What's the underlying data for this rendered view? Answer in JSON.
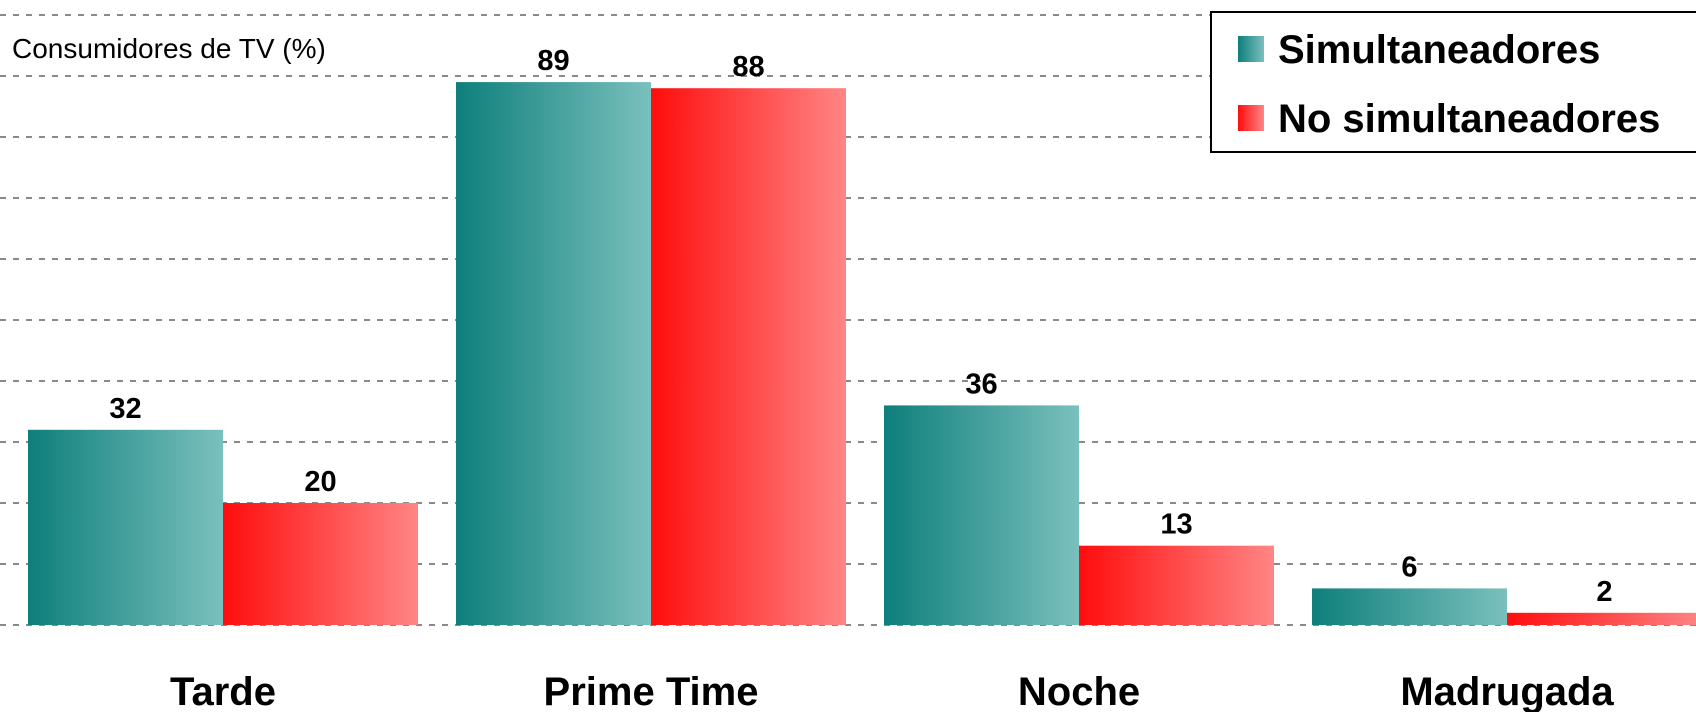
{
  "chart_data": {
    "type": "bar",
    "ylabel": "Consumidores de TV (%)",
    "categories": [
      "Tarde",
      "Prime Time",
      "Noche",
      "Madrugada"
    ],
    "series": [
      {
        "name": "Simultaneadores",
        "values": [
          32,
          89,
          36,
          6
        ],
        "color_dark": "#0e7f7b",
        "color_light": "#7ac0bd"
      },
      {
        "name": "No simultaneadores",
        "values": [
          20,
          88,
          13,
          2
        ],
        "color_dark": "#ff0d0d",
        "color_light": "#ff8585"
      }
    ],
    "ylim": [
      0,
      100
    ],
    "grid": true,
    "legend_position": "top-right"
  }
}
